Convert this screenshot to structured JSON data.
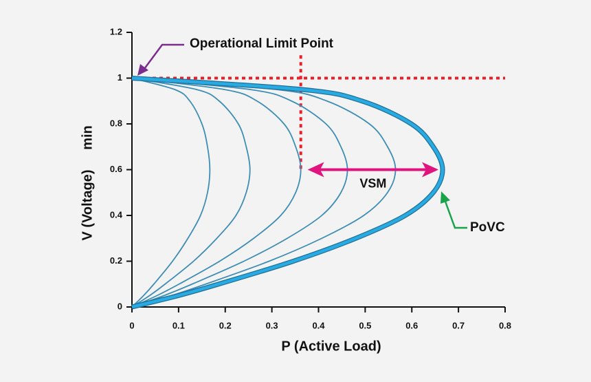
{
  "chart_data": {
    "type": "line",
    "xlabel": "P  (Active Load)",
    "ylabel": "V (Voltage)",
    "ylabel_sub": "min",
    "xlim": [
      0,
      0.8
    ],
    "xticks": [
      0,
      0.1,
      0.2,
      0.3,
      0.4,
      0.5,
      0.6,
      0.7,
      0.8
    ],
    "ylim": [
      0,
      1.2
    ],
    "yticks": [
      0,
      0.2,
      0.4,
      0.6,
      0.8,
      1,
      1.2
    ],
    "series": [
      {
        "color": "#3d8db5",
        "x": [
          0,
          0.092,
          0.124,
          0.15,
          0.162,
          0.167,
          0.162,
          0.147,
          0.12,
          0.087,
          0.047,
          0.025,
          0
        ],
        "values": [
          1,
          0.95,
          0.9,
          0.8,
          0.7,
          0.6,
          0.5,
          0.4,
          0.3,
          0.2,
          0.1,
          0.05,
          0
        ]
      },
      {
        "color": "#3d8db5",
        "x": [
          0,
          0.139,
          0.187,
          0.228,
          0.245,
          0.253,
          0.245,
          0.223,
          0.182,
          0.132,
          0.071,
          0.038,
          0
        ],
        "values": [
          1,
          0.95,
          0.9,
          0.8,
          0.7,
          0.6,
          0.5,
          0.4,
          0.3,
          0.2,
          0.1,
          0.05,
          0
        ]
      },
      {
        "color": "#3d8db5",
        "x": [
          0,
          0.199,
          0.268,
          0.326,
          0.351,
          0.362,
          0.351,
          0.319,
          0.261,
          0.188,
          0.101,
          0.054,
          0
        ],
        "values": [
          1,
          0.95,
          0.9,
          0.8,
          0.7,
          0.6,
          0.5,
          0.4,
          0.3,
          0.2,
          0.1,
          0.05,
          0
        ]
      },
      {
        "color": "#3d8db5",
        "x": [
          0,
          0.254,
          0.342,
          0.416,
          0.448,
          0.462,
          0.448,
          0.407,
          0.333,
          0.24,
          0.129,
          0.069,
          0
        ],
        "values": [
          1,
          0.95,
          0.9,
          0.8,
          0.7,
          0.6,
          0.5,
          0.4,
          0.3,
          0.2,
          0.1,
          0.05,
          0
        ]
      },
      {
        "color": "#3d8db5",
        "x": [
          0,
          0.311,
          0.418,
          0.509,
          0.548,
          0.565,
          0.548,
          0.497,
          0.407,
          0.294,
          0.158,
          0.085,
          0
        ],
        "values": [
          1,
          0.95,
          0.9,
          0.8,
          0.7,
          0.6,
          0.5,
          0.4,
          0.3,
          0.2,
          0.1,
          0.05,
          0
        ]
      },
      {
        "color": "#29abe2",
        "x": [
          0,
          0.366,
          0.493,
          0.599,
          0.646,
          0.666,
          0.646,
          0.586,
          0.48,
          0.346,
          0.186,
          0.1,
          0
        ],
        "values": [
          1,
          0.95,
          0.9,
          0.8,
          0.7,
          0.6,
          0.5,
          0.4,
          0.3,
          0.2,
          0.1,
          0.05,
          0
        ]
      }
    ],
    "hline": {
      "y": 1,
      "color": "#e8202a"
    },
    "vline": {
      "x": 0.362,
      "y": [
        1.1,
        0.6
      ],
      "color": "#e8202a"
    },
    "vsm": {
      "label": "VSM",
      "color": "#e0137f"
    },
    "annotations": [
      "Operational Limit Point",
      "PoVC"
    ]
  }
}
